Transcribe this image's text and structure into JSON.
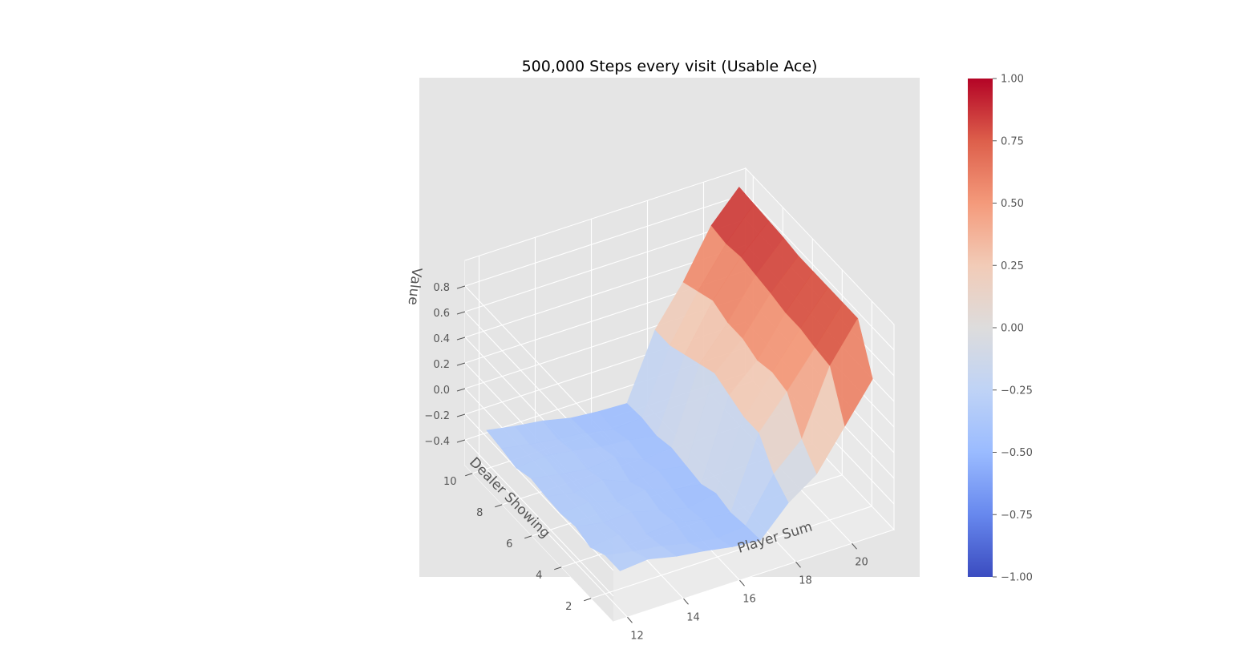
{
  "chart_data": {
    "type": "surface",
    "title": "500,000 Steps every visit (Usable Ace)",
    "xlabel": "Player Sum",
    "ylabel": "Dealer Showing",
    "zlabel": "Value",
    "x": [
      12,
      13,
      14,
      15,
      16,
      17,
      18,
      19,
      20,
      21
    ],
    "y": [
      1,
      2,
      3,
      4,
      5,
      6,
      7,
      8,
      9,
      10
    ],
    "z": [
      [
        -0.3,
        -0.28,
        -0.33,
        -0.36,
        -0.4,
        -0.42,
        -0.2,
        -0.05,
        0.25,
        0.55
      ],
      [
        -0.3,
        -0.34,
        -0.37,
        -0.42,
        -0.45,
        -0.43,
        -0.1,
        0.1,
        0.6,
        0.9
      ],
      [
        -0.36,
        -0.33,
        -0.4,
        -0.38,
        -0.43,
        -0.45,
        0.1,
        0.35,
        0.62,
        0.9
      ],
      [
        -0.32,
        -0.36,
        -0.35,
        -0.41,
        -0.46,
        -0.42,
        0.1,
        0.38,
        0.65,
        0.9
      ],
      [
        -0.34,
        -0.32,
        -0.39,
        -0.37,
        -0.44,
        -0.47,
        0.15,
        0.35,
        0.65,
        0.9
      ],
      [
        -0.33,
        -0.37,
        -0.34,
        -0.43,
        -0.41,
        -0.45,
        0.2,
        0.4,
        0.68,
        0.9
      ],
      [
        -0.31,
        -0.35,
        -0.38,
        -0.36,
        -0.45,
        -0.43,
        0.15,
        0.4,
        0.7,
        0.92
      ],
      [
        -0.35,
        -0.33,
        -0.36,
        -0.4,
        -0.42,
        -0.46,
        0.1,
        0.45,
        0.72,
        0.93
      ],
      [
        -0.32,
        -0.36,
        -0.39,
        -0.41,
        -0.46,
        -0.44,
        0.05,
        0.4,
        0.7,
        0.94
      ],
      [
        -0.3,
        -0.34,
        -0.37,
        -0.42,
        -0.44,
        -0.45,
        0.05,
        0.35,
        0.72,
        0.95
      ]
    ],
    "colormap": "coolwarm",
    "clim": [
      -1,
      1
    ],
    "x_ticks": [
      "12",
      "14",
      "16",
      "18",
      "20"
    ],
    "y_ticks": [
      "2",
      "4",
      "6",
      "8",
      "10"
    ],
    "z_ticks": [
      "−0.4",
      "−0.2",
      "0.0",
      "0.2",
      "0.4",
      "0.6",
      "0.8"
    ],
    "colorbar_ticks": [
      "1.00",
      "0.75",
      "0.50",
      "0.25",
      "0.00",
      "−0.25",
      "−0.50",
      "−0.75",
      "−1.00"
    ],
    "colorbar_values": [
      1.0,
      0.75,
      0.5,
      0.25,
      0.0,
      -0.25,
      -0.5,
      -0.75,
      -1.0
    ],
    "pane_color": "#e5e5e5",
    "grid": true
  }
}
